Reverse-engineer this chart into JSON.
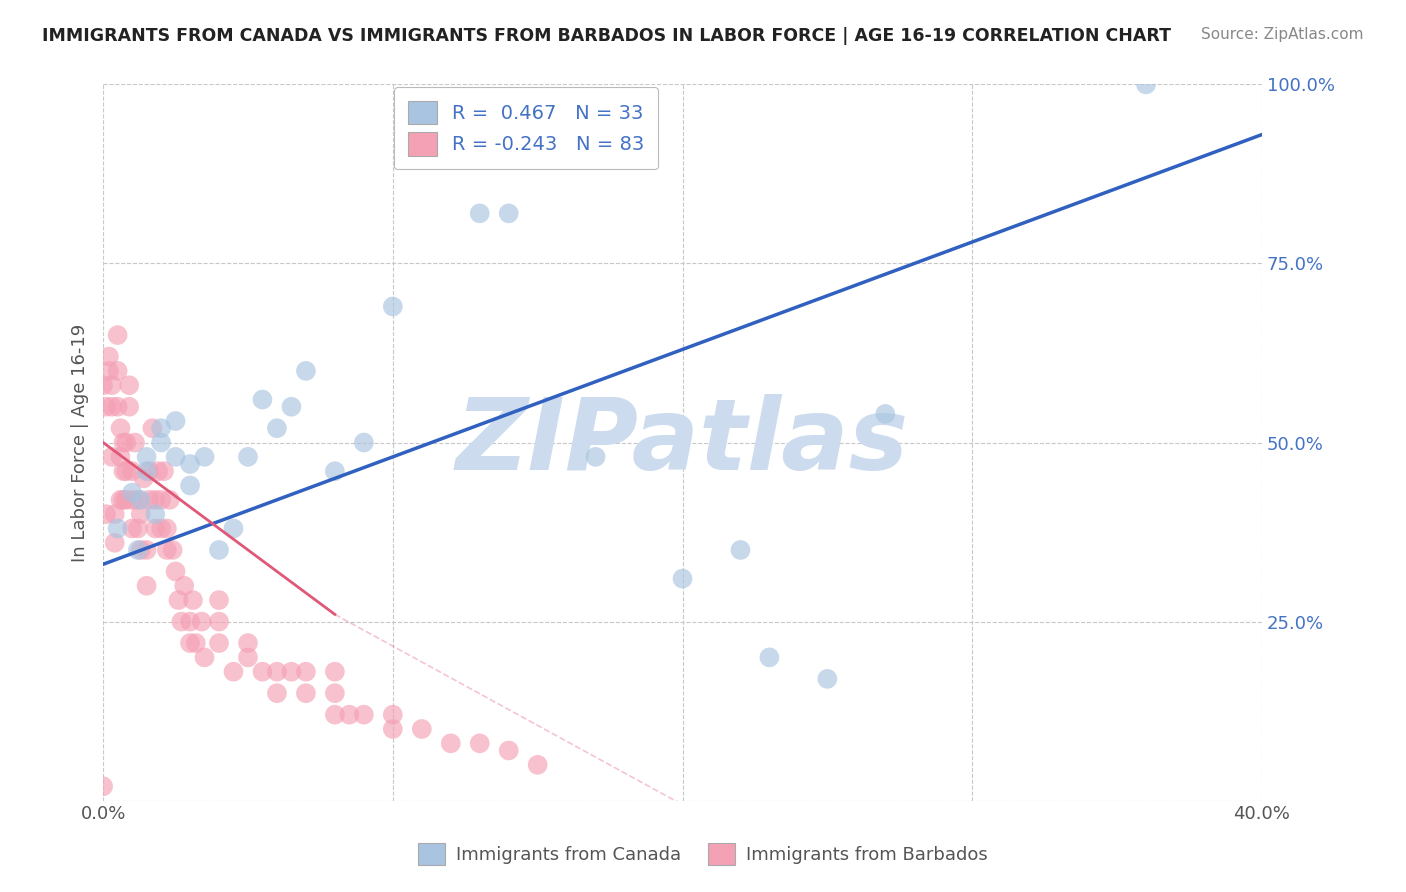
{
  "title": "IMMIGRANTS FROM CANADA VS IMMIGRANTS FROM BARBADOS IN LABOR FORCE | AGE 16-19 CORRELATION CHART",
  "source": "Source: ZipAtlas.com",
  "ylabel": "In Labor Force | Age 16-19",
  "xlim": [
    0.0,
    0.4
  ],
  "ylim": [
    0.0,
    1.0
  ],
  "xticks": [
    0.0,
    0.1,
    0.2,
    0.3,
    0.4
  ],
  "xticklabels": [
    "0.0%",
    "",
    "",
    "",
    "40.0%"
  ],
  "yticks": [
    0.0,
    0.25,
    0.5,
    0.75,
    1.0
  ],
  "yticklabels": [
    "",
    "25.0%",
    "50.0%",
    "75.0%",
    "100.0%"
  ],
  "canada_R": 0.467,
  "canada_N": 33,
  "barbados_R": -0.243,
  "barbados_N": 83,
  "canada_color": "#a8c4e0",
  "barbados_color": "#f4a0b5",
  "canada_line_color": "#3060c0",
  "barbados_line_color": "#e05878",
  "background_color": "#ffffff",
  "grid_color": "#c8c8c8",
  "watermark": "ZIPatlas",
  "watermark_color": "#ccdcee",
  "canada_x": [
    0.005,
    0.01,
    0.012,
    0.013,
    0.015,
    0.015,
    0.018,
    0.02,
    0.02,
    0.025,
    0.025,
    0.03,
    0.03,
    0.035,
    0.04,
    0.045,
    0.05,
    0.055,
    0.06,
    0.065,
    0.07,
    0.08,
    0.09,
    0.1,
    0.13,
    0.14,
    0.17,
    0.2,
    0.22,
    0.23,
    0.25,
    0.27,
    0.36
  ],
  "canada_y": [
    0.38,
    0.43,
    0.35,
    0.42,
    0.46,
    0.48,
    0.4,
    0.5,
    0.52,
    0.48,
    0.53,
    0.44,
    0.47,
    0.48,
    0.35,
    0.38,
    0.48,
    0.56,
    0.52,
    0.55,
    0.6,
    0.46,
    0.5,
    0.69,
    0.82,
    0.82,
    0.48,
    0.31,
    0.35,
    0.2,
    0.17,
    0.54,
    1.0
  ],
  "barbados_x": [
    0.0,
    0.001,
    0.001,
    0.002,
    0.002,
    0.003,
    0.003,
    0.003,
    0.004,
    0.004,
    0.005,
    0.005,
    0.005,
    0.006,
    0.006,
    0.006,
    0.007,
    0.007,
    0.007,
    0.008,
    0.008,
    0.008,
    0.009,
    0.009,
    0.01,
    0.01,
    0.01,
    0.011,
    0.012,
    0.012,
    0.013,
    0.013,
    0.014,
    0.015,
    0.015,
    0.016,
    0.016,
    0.017,
    0.018,
    0.018,
    0.019,
    0.02,
    0.02,
    0.021,
    0.022,
    0.022,
    0.023,
    0.024,
    0.025,
    0.026,
    0.027,
    0.028,
    0.03,
    0.03,
    0.031,
    0.032,
    0.034,
    0.035,
    0.04,
    0.04,
    0.04,
    0.045,
    0.05,
    0.05,
    0.055,
    0.06,
    0.06,
    0.065,
    0.07,
    0.07,
    0.08,
    0.08,
    0.08,
    0.085,
    0.09,
    0.1,
    0.1,
    0.11,
    0.12,
    0.13,
    0.14,
    0.15,
    0.0
  ],
  "barbados_y": [
    0.02,
    0.4,
    0.55,
    0.6,
    0.62,
    0.48,
    0.55,
    0.58,
    0.36,
    0.4,
    0.55,
    0.6,
    0.65,
    0.42,
    0.48,
    0.52,
    0.42,
    0.46,
    0.5,
    0.42,
    0.46,
    0.5,
    0.55,
    0.58,
    0.38,
    0.42,
    0.46,
    0.5,
    0.38,
    0.42,
    0.35,
    0.4,
    0.45,
    0.3,
    0.35,
    0.42,
    0.46,
    0.52,
    0.38,
    0.42,
    0.46,
    0.38,
    0.42,
    0.46,
    0.35,
    0.38,
    0.42,
    0.35,
    0.32,
    0.28,
    0.25,
    0.3,
    0.22,
    0.25,
    0.28,
    0.22,
    0.25,
    0.2,
    0.22,
    0.25,
    0.28,
    0.18,
    0.2,
    0.22,
    0.18,
    0.15,
    0.18,
    0.18,
    0.15,
    0.18,
    0.12,
    0.15,
    0.18,
    0.12,
    0.12,
    0.1,
    0.12,
    0.1,
    0.08,
    0.08,
    0.07,
    0.05,
    0.58
  ]
}
